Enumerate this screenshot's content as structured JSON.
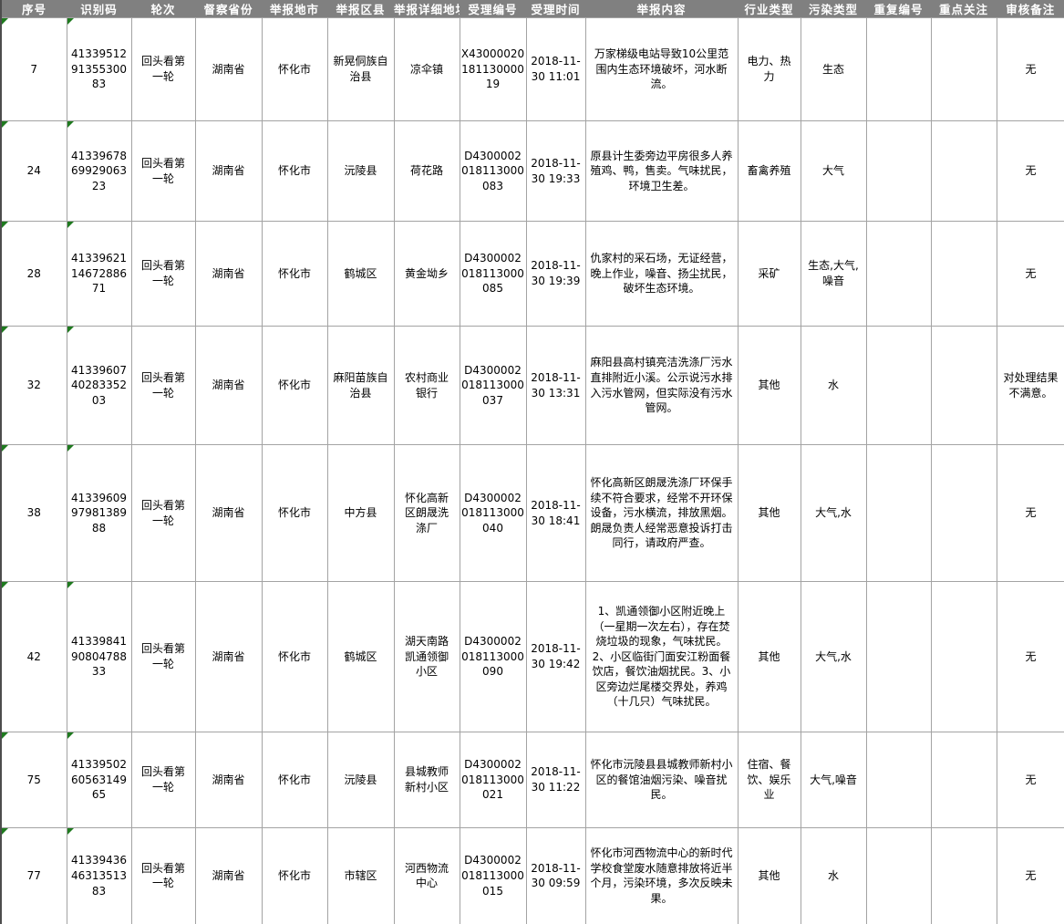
{
  "colors": {
    "header_bg": "#808080",
    "header_text": "#FFFFFF",
    "grid_line": "#A3A3A3",
    "outer_border": "#4D4D4D",
    "marker_green": "#1F7A1F",
    "cell_text": "#000000"
  },
  "icons": {
    "error_indicator": "green-corner-triangle"
  },
  "table": {
    "marker_columns": [
      "seq",
      "id_code"
    ],
    "headers": [
      {
        "key": "seq",
        "label": "序号"
      },
      {
        "key": "id_code",
        "label": "识别码"
      },
      {
        "key": "round",
        "label": "轮次"
      },
      {
        "key": "province",
        "label": "督察省份"
      },
      {
        "key": "city",
        "label": "举报地市"
      },
      {
        "key": "district",
        "label": "举报区县"
      },
      {
        "key": "address",
        "label": "举报详细地址"
      },
      {
        "key": "case_no",
        "label": "受理编号"
      },
      {
        "key": "accept_time",
        "label": "受理时间"
      },
      {
        "key": "content",
        "label": "举报内容"
      },
      {
        "key": "industry_type",
        "label": "行业类型"
      },
      {
        "key": "pollution_type",
        "label": "污染类型"
      },
      {
        "key": "dup_no",
        "label": "重复编号"
      },
      {
        "key": "key_focus",
        "label": "重点关注"
      },
      {
        "key": "review_note",
        "label": "审核备注"
      }
    ],
    "rows": [
      {
        "seq": "7",
        "id_code": "413395129135530083",
        "round": "回头看第一轮",
        "province": "湖南省",
        "city": "怀化市",
        "district": "新晃侗族自治县",
        "address": "凉伞镇",
        "case_no": "X4300002018113000019",
        "accept_time": "2018-11-30 11:01",
        "content": "万家梯级电站导致10公里范围内生态环境破坏，河水断流。",
        "industry_type": "电力、热力",
        "pollution_type": "生态",
        "dup_no": "",
        "key_focus": "",
        "review_note": "无"
      },
      {
        "seq": "24",
        "id_code": "413396786992906323",
        "round": "回头看第一轮",
        "province": "湖南省",
        "city": "怀化市",
        "district": "沅陵县",
        "address": "荷花路",
        "case_no": "D4300002018113000083",
        "accept_time": "2018-11-30 19:33",
        "content": "原县计生委旁边平房很多人养殖鸡、鸭，售卖。气味扰民，环境卫生差。",
        "industry_type": "畜禽养殖",
        "pollution_type": "大气",
        "dup_no": "",
        "key_focus": "",
        "review_note": "无"
      },
      {
        "seq": "28",
        "id_code": "413396211467288671",
        "round": "回头看第一轮",
        "province": "湖南省",
        "city": "怀化市",
        "district": "鹤城区",
        "address": "黄金坳乡",
        "case_no": "D4300002018113000085",
        "accept_time": "2018-11-30 19:39",
        "content": "仇家村的采石场，无证经营，晚上作业，噪音、扬尘扰民，破坏生态环境。",
        "industry_type": "采矿",
        "pollution_type": "生态,大气,噪音",
        "dup_no": "",
        "key_focus": "",
        "review_note": "无"
      },
      {
        "seq": "32",
        "id_code": "413396074028335203",
        "round": "回头看第一轮",
        "province": "湖南省",
        "city": "怀化市",
        "district": "麻阳苗族自治县",
        "address": "农村商业银行",
        "case_no": "D4300002018113000037",
        "accept_time": "2018-11-30 13:31",
        "content": "麻阳县高村镇亮洁洗涤厂污水直排附近小溪。公示说污水排入污水管网，但实际没有污水管网。",
        "industry_type": "其他",
        "pollution_type": "水",
        "dup_no": "",
        "key_focus": "",
        "review_note": "对处理结果不满意。"
      },
      {
        "seq": "38",
        "id_code": "413396099798138988",
        "round": "回头看第一轮",
        "province": "湖南省",
        "city": "怀化市",
        "district": "中方县",
        "address": "怀化高新区朗晟洗涤厂",
        "case_no": "D4300002018113000040",
        "accept_time": "2018-11-30 18:41",
        "content": "怀化高新区朗晟洗涤厂环保手续不符合要求，经常不开环保设备，污水横流，排放黑烟。朗晟负责人经常恶意投诉打击同行，请政府严查。",
        "industry_type": "其他",
        "pollution_type": "大气,水",
        "dup_no": "",
        "key_focus": "",
        "review_note": "无"
      },
      {
        "seq": "42",
        "id_code": "413398419080478833",
        "round": "回头看第一轮",
        "province": "湖南省",
        "city": "怀化市",
        "district": "鹤城区",
        "address": "湖天南路凯通领御小区",
        "case_no": "D4300002018113000090",
        "accept_time": "2018-11-30 19:42",
        "content": "1、凯通领御小区附近晚上（一星期一次左右），存在焚烧垃圾的现象，气味扰民。2、小区临街门面安江粉面餐饮店，餐饮油烟扰民。3、小区旁边烂尾楼交界处，养鸡（十几只）气味扰民。",
        "industry_type": "其他",
        "pollution_type": "大气,水",
        "dup_no": "",
        "key_focus": "",
        "review_note": "无"
      },
      {
        "seq": "75",
        "id_code": "413395026056314965",
        "round": "回头看第一轮",
        "province": "湖南省",
        "city": "怀化市",
        "district": "沅陵县",
        "address": "县城教师新村小区",
        "case_no": "D4300002018113000021",
        "accept_time": "2018-11-30 11:22",
        "content": "怀化市沅陵县县城教师新村小区的餐馆油烟污染、噪音扰民。",
        "industry_type": "住宿、餐饮、娱乐业",
        "pollution_type": "大气,噪音",
        "dup_no": "",
        "key_focus": "",
        "review_note": "无"
      },
      {
        "seq": "77",
        "id_code": "413394364631351383",
        "round": "回头看第一轮",
        "province": "湖南省",
        "city": "怀化市",
        "district": "市辖区",
        "address": "河西物流中心",
        "case_no": "D4300002018113000015",
        "accept_time": "2018-11-30 09:59",
        "content": "怀化市河西物流中心的新时代学校食堂废水随意排放将近半个月，污染环境，多次反映未果。",
        "industry_type": "其他",
        "pollution_type": "水",
        "dup_no": "",
        "key_focus": "",
        "review_note": "无"
      }
    ]
  }
}
